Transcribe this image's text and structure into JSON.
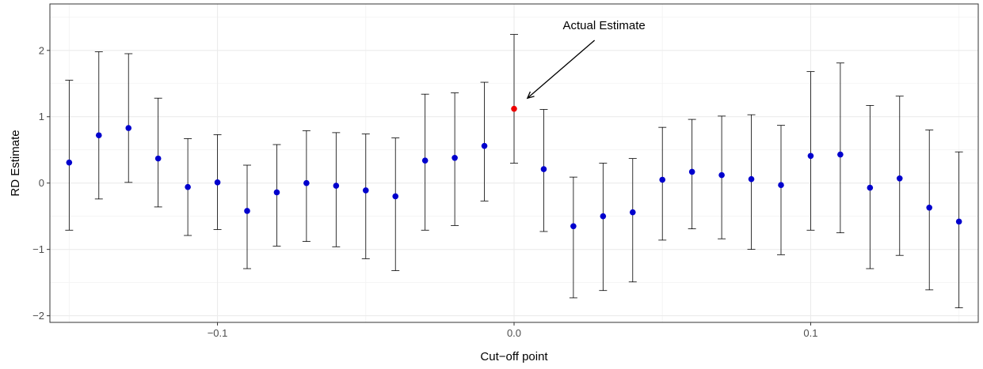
{
  "chart_data": {
    "type": "scatter",
    "xlabel": "Cut−off point",
    "ylabel": "RD Estimate",
    "xlim": [
      -0.1565,
      0.1565
    ],
    "ylim": [
      -2.1,
      2.7
    ],
    "x_ticks": [
      -0.1,
      0.0,
      0.1
    ],
    "x_tick_labels": [
      "−0.1",
      "0.0",
      "0.1"
    ],
    "y_ticks": [
      -2,
      -1,
      0,
      1,
      2
    ],
    "y_tick_labels": [
      "−2",
      "−1",
      "0",
      "1",
      "2"
    ],
    "grid": true,
    "legend": "none",
    "point_color": "#0000CD",
    "highlight_color": "#EE0000",
    "points": [
      {
        "x": -0.15,
        "y": 0.31,
        "lower": -0.71,
        "upper": 1.55
      },
      {
        "x": -0.14,
        "y": 0.72,
        "lower": -0.24,
        "upper": 1.98
      },
      {
        "x": -0.13,
        "y": 0.83,
        "lower": 0.01,
        "upper": 1.95
      },
      {
        "x": -0.12,
        "y": 0.37,
        "lower": -0.36,
        "upper": 1.28
      },
      {
        "x": -0.11,
        "y": -0.06,
        "lower": -0.79,
        "upper": 0.67
      },
      {
        "x": -0.1,
        "y": 0.01,
        "lower": -0.7,
        "upper": 0.73
      },
      {
        "x": -0.09,
        "y": -0.42,
        "lower": -1.29,
        "upper": 0.27
      },
      {
        "x": -0.08,
        "y": -0.14,
        "lower": -0.95,
        "upper": 0.58
      },
      {
        "x": -0.07,
        "y": 0.0,
        "lower": -0.88,
        "upper": 0.79
      },
      {
        "x": -0.06,
        "y": -0.04,
        "lower": -0.96,
        "upper": 0.76
      },
      {
        "x": -0.05,
        "y": -0.11,
        "lower": -1.14,
        "upper": 0.74
      },
      {
        "x": -0.04,
        "y": -0.2,
        "lower": -1.32,
        "upper": 0.68
      },
      {
        "x": -0.03,
        "y": 0.34,
        "lower": -0.71,
        "upper": 1.34
      },
      {
        "x": -0.02,
        "y": 0.38,
        "lower": -0.64,
        "upper": 1.36
      },
      {
        "x": -0.01,
        "y": 0.56,
        "lower": -0.27,
        "upper": 1.52
      },
      {
        "x": 0.0,
        "y": 1.12,
        "lower": 0.3,
        "upper": 2.24,
        "highlight": true
      },
      {
        "x": 0.01,
        "y": 0.21,
        "lower": -0.73,
        "upper": 1.11
      },
      {
        "x": 0.02,
        "y": -0.65,
        "lower": -1.73,
        "upper": 0.09
      },
      {
        "x": 0.03,
        "y": -0.5,
        "lower": -1.62,
        "upper": 0.3
      },
      {
        "x": 0.04,
        "y": -0.44,
        "lower": -1.49,
        "upper": 0.37
      },
      {
        "x": 0.05,
        "y": 0.05,
        "lower": -0.86,
        "upper": 0.84
      },
      {
        "x": 0.06,
        "y": 0.17,
        "lower": -0.69,
        "upper": 0.96
      },
      {
        "x": 0.07,
        "y": 0.12,
        "lower": -0.84,
        "upper": 1.01
      },
      {
        "x": 0.08,
        "y": 0.06,
        "lower": -1.0,
        "upper": 1.03
      },
      {
        "x": 0.09,
        "y": -0.03,
        "lower": -1.08,
        "upper": 0.87
      },
      {
        "x": 0.1,
        "y": 0.41,
        "lower": -0.71,
        "upper": 1.68
      },
      {
        "x": 0.11,
        "y": 0.43,
        "lower": -0.75,
        "upper": 1.81
      },
      {
        "x": 0.12,
        "y": -0.07,
        "lower": -1.29,
        "upper": 1.17
      },
      {
        "x": 0.13,
        "y": 0.07,
        "lower": -1.09,
        "upper": 1.31
      },
      {
        "x": 0.14,
        "y": -0.37,
        "lower": -1.61,
        "upper": 0.8
      },
      {
        "x": 0.15,
        "y": -0.58,
        "lower": -1.88,
        "upper": 0.47
      }
    ],
    "annotation": {
      "text": "Actual Estimate",
      "arrow_from": [
        0.025,
        2.2
      ],
      "arrow_to": [
        0.0045,
        1.28
      ],
      "text_anchor_point": [
        0.025,
        2.38
      ]
    }
  }
}
